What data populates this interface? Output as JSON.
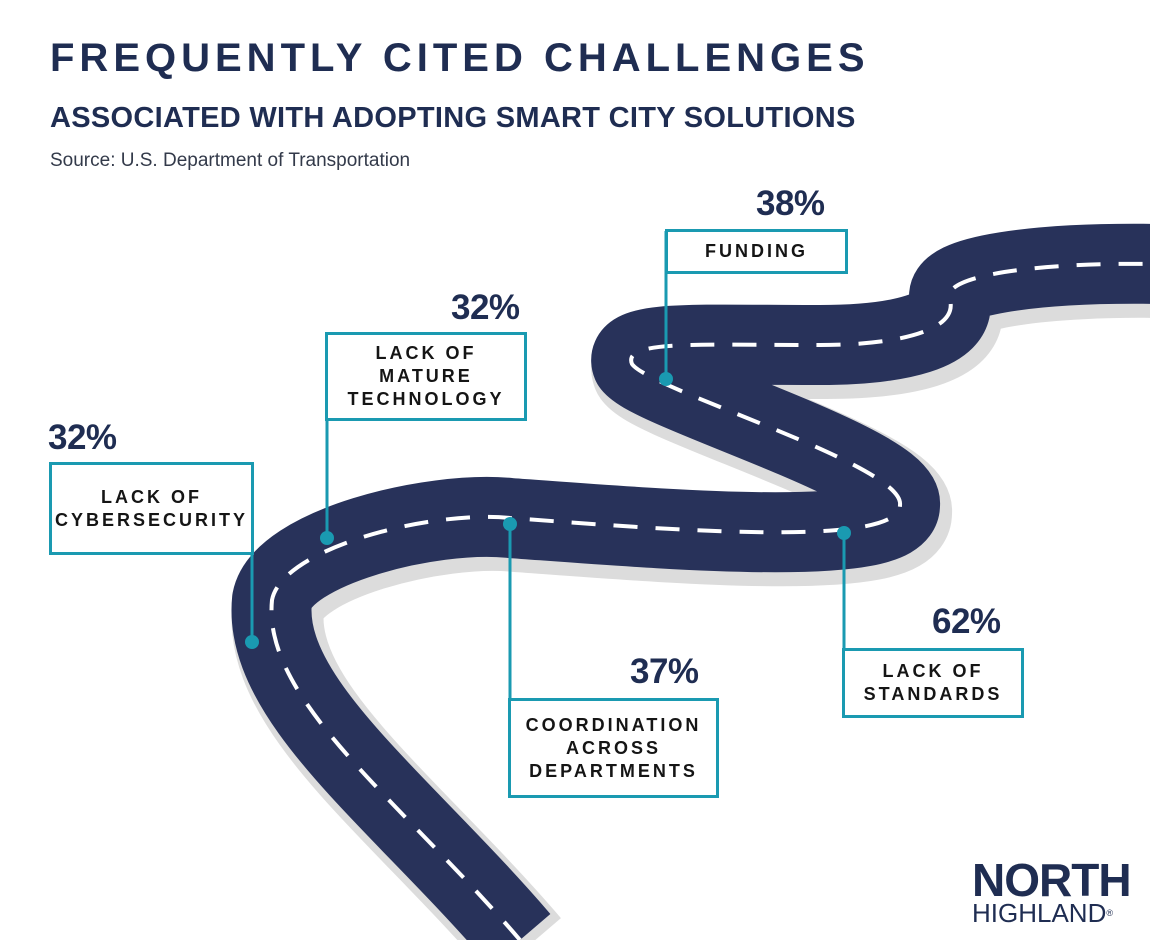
{
  "header": {
    "title": "FREQUENTLY CITED CHALLENGES",
    "subtitle": "ASSOCIATED WITH ADOPTING SMART CITY SOLUTIONS",
    "source": "Source: U.S. Department of Transportation"
  },
  "challenges": [
    {
      "percent": "32%",
      "label": "LACK OF\nCYBERSECURITY"
    },
    {
      "percent": "32%",
      "label": "LACK OF\nMATURE\nTECHNOLOGY"
    },
    {
      "percent": "37%",
      "label": "COORDINATION\nACROSS\nDEPARTMENTS"
    },
    {
      "percent": "62%",
      "label": "LACK OF\nSTANDARDS"
    },
    {
      "percent": "38%",
      "label": "FUNDING"
    }
  ],
  "logo": {
    "line1": "NORTH",
    "line2": "HIGHLAND",
    "mark": "®"
  },
  "colors": {
    "navy": "#1f2d52",
    "road": "#28325a",
    "teal": "#1a9ab1",
    "shadow": "#d9d9d9"
  }
}
